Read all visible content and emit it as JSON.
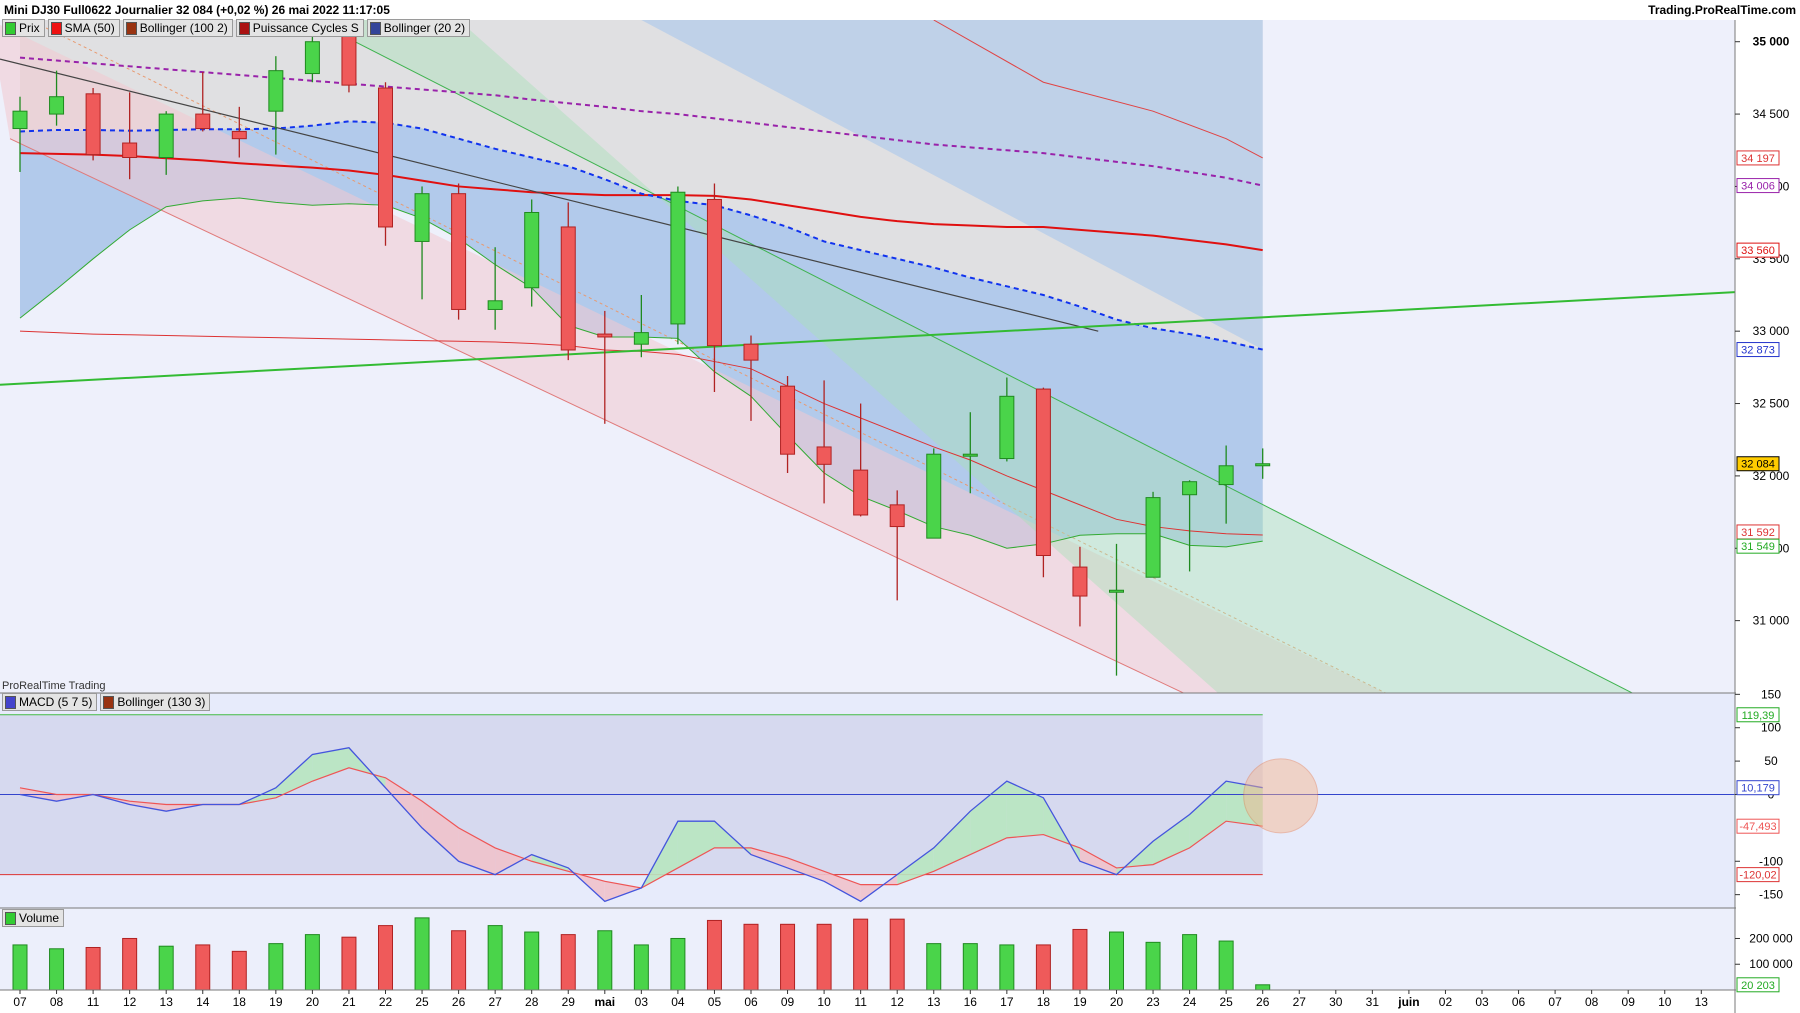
{
  "header": {
    "title": "Mini DJ30 Full0622 Journalier 32 084 (+0,02 %) 26 mai 2022 11:17:05",
    "brand": "Trading.ProRealTime.com"
  },
  "legends": {
    "price": [
      {
        "label": "Prix",
        "color": "#33cc33"
      },
      {
        "label": "SMA (50)",
        "color": "#ee1111"
      },
      {
        "label": "Bollinger (100 2)",
        "color": "#993311"
      },
      {
        "label": "Puissance Cycles S",
        "color": "#aa1111"
      },
      {
        "label": "Bollinger (20 2)",
        "color": "#334499"
      }
    ],
    "provider": "ProRealTime Trading",
    "macd": [
      {
        "label": "MACD (5 7 5)",
        "color": "#4444cc"
      },
      {
        "label": "Bollinger (130 3)",
        "color": "#993311"
      }
    ],
    "volume": [
      {
        "label": "Volume",
        "color": "#33cc33"
      }
    ]
  },
  "chart_data": [
    {
      "type": "candlestick",
      "x_labels": [
        "07",
        "08",
        "11",
        "12",
        "13",
        "14",
        "18",
        "19",
        "20",
        "21",
        "22",
        "25",
        "26",
        "27",
        "28",
        "29",
        "mai",
        "03",
        "04",
        "05",
        "06",
        "09",
        "10",
        "11",
        "12",
        "13",
        "16",
        "17",
        "18",
        "19",
        "20",
        "23",
        "24",
        "25",
        "26",
        "27",
        "30",
        "31",
        "juin",
        "02",
        "03",
        "06",
        "07",
        "08",
        "09",
        "10",
        "13"
      ],
      "ohlc": [
        {
          "o": 34400,
          "h": 34620,
          "l": 34100,
          "c": 34520
        },
        {
          "o": 34500,
          "h": 34800,
          "l": 34420,
          "c": 34620
        },
        {
          "o": 34640,
          "h": 34680,
          "l": 34180,
          "c": 34220
        },
        {
          "o": 34300,
          "h": 34650,
          "l": 34050,
          "c": 34200
        },
        {
          "o": 34200,
          "h": 34520,
          "l": 34080,
          "c": 34500
        },
        {
          "o": 34500,
          "h": 34790,
          "l": 34380,
          "c": 34400
        },
        {
          "o": 34380,
          "h": 34550,
          "l": 34200,
          "c": 34330
        },
        {
          "o": 34520,
          "h": 34900,
          "l": 34220,
          "c": 34800
        },
        {
          "o": 34780,
          "h": 35100,
          "l": 34720,
          "c": 35000
        },
        {
          "o": 35050,
          "h": 35080,
          "l": 34650,
          "c": 34700
        },
        {
          "o": 34680,
          "h": 34720,
          "l": 33590,
          "c": 33720
        },
        {
          "o": 33620,
          "h": 34000,
          "l": 33220,
          "c": 33950
        },
        {
          "o": 33950,
          "h": 34020,
          "l": 33080,
          "c": 33150
        },
        {
          "o": 33150,
          "h": 33580,
          "l": 33010,
          "c": 33210
        },
        {
          "o": 33300,
          "h": 33910,
          "l": 33170,
          "c": 33820
        },
        {
          "o": 33720,
          "h": 33890,
          "l": 32800,
          "c": 32870
        },
        {
          "o": 32980,
          "h": 33140,
          "l": 32360,
          "c": 32960
        },
        {
          "o": 32910,
          "h": 33250,
          "l": 32820,
          "c": 32990
        },
        {
          "o": 33050,
          "h": 34000,
          "l": 32910,
          "c": 33960
        },
        {
          "o": 33910,
          "h": 34020,
          "l": 32580,
          "c": 32900
        },
        {
          "o": 32910,
          "h": 32970,
          "l": 32380,
          "c": 32800
        },
        {
          "o": 32620,
          "h": 32690,
          "l": 32020,
          "c": 32150
        },
        {
          "o": 32200,
          "h": 32660,
          "l": 31810,
          "c": 32080
        },
        {
          "o": 32040,
          "h": 32500,
          "l": 31720,
          "c": 31730
        },
        {
          "o": 31800,
          "h": 31900,
          "l": 31140,
          "c": 31650
        },
        {
          "o": 31570,
          "h": 32190,
          "l": 31570,
          "c": 32150
        },
        {
          "o": 32150,
          "h": 32440,
          "l": 31880,
          "c": 32150
        },
        {
          "o": 32120,
          "h": 32680,
          "l": 32100,
          "c": 32550
        },
        {
          "o": 32600,
          "h": 32610,
          "l": 31300,
          "c": 31450
        },
        {
          "o": 31370,
          "h": 31510,
          "l": 30960,
          "c": 31170
        },
        {
          "o": 31210,
          "h": 31530,
          "l": 30620,
          "c": 31210
        },
        {
          "o": 31300,
          "h": 31890,
          "l": 31300,
          "c": 31850
        },
        {
          "o": 31870,
          "h": 31970,
          "l": 31340,
          "c": 31960
        },
        {
          "o": 31940,
          "h": 32210,
          "l": 31670,
          "c": 32070
        },
        {
          "o": 32070,
          "h": 32190,
          "l": 31980,
          "c": 32084
        }
      ],
      "sma50": [
        34230,
        34225,
        34220,
        34210,
        34195,
        34180,
        34160,
        34145,
        34130,
        34110,
        34080,
        34040,
        34000,
        33980,
        33960,
        33950,
        33940,
        33940,
        33940,
        33935,
        33910,
        33870,
        33830,
        33790,
        33760,
        33740,
        33730,
        33720,
        33720,
        33700,
        33680,
        33660,
        33630,
        33600,
        33560
      ],
      "bollinger100_upper": [
        34890,
        34870,
        34850,
        34830,
        34810,
        34790,
        34770,
        34750,
        34730,
        34710,
        34690,
        34670,
        34650,
        34630,
        34600,
        34575,
        34550,
        34520,
        34500,
        34470,
        34440,
        34410,
        34380,
        34350,
        34320,
        34290,
        34270,
        34250,
        34230,
        34200,
        34170,
        34140,
        34100,
        34060,
        34006
      ],
      "bollinger20_upper": [
        34380,
        34390,
        34390,
        34385,
        34390,
        34395,
        34395,
        34400,
        34420,
        34450,
        34440,
        34400,
        34330,
        34260,
        34200,
        34140,
        34050,
        33950,
        33900,
        33870,
        33800,
        33720,
        33620,
        33560,
        33500,
        33440,
        33370,
        33310,
        33250,
        33170,
        33080,
        33020,
        32980,
        32930,
        32873
      ],
      "bollinger20_lower": [
        33090,
        33290,
        33500,
        33700,
        33860,
        33900,
        33920,
        33890,
        33870,
        33880,
        33870,
        33780,
        33640,
        33460,
        33300,
        33040,
        32960,
        32960,
        32950,
        32720,
        32550,
        32280,
        32020,
        31860,
        31760,
        31650,
        31590,
        31500,
        31530,
        31590,
        31600,
        31600,
        31520,
        31510,
        31549
      ],
      "cycle_power": [
        33000,
        32990,
        32980,
        32975,
        32970,
        32965,
        32960,
        32955,
        32950,
        32945,
        32940,
        32935,
        32930,
        32925,
        32915,
        32900,
        32870,
        32860,
        32840,
        32790,
        32740,
        32620,
        32500,
        32400,
        32300,
        32200,
        32110,
        32000,
        31900,
        31800,
        31700,
        31650,
        31620,
        31600,
        31592
      ],
      "channel_line": {
        "x0": 0,
        "y0": 32630,
        "x1": 47,
        "y1": 33270
      },
      "trend_line": {
        "x0": 0,
        "y0": 34880,
        "x1": 29.5,
        "y1": 33000
      },
      "last_prices": {
        "sma50": "33 560",
        "boll100": "34 006",
        "boll_upper": "34 197",
        "boll20_upper": "32 873",
        "cycle": "31 592",
        "boll20_lower": "31 549",
        "last": "32 084"
      },
      "y_ticks": [
        "35 000",
        "34 500",
        "34 000",
        "33 500",
        "33 000",
        "32 500",
        "32 000",
        "31 500",
        "31 000"
      ],
      "y_tick_values": [
        35000,
        34500,
        34000,
        33500,
        33000,
        32500,
        32000,
        31500,
        31000
      ],
      "ylim": [
        30500,
        35150
      ]
    },
    {
      "type": "line",
      "name": "MACD (5 7 5)",
      "macd": [
        0,
        -10,
        0,
        -15,
        -25,
        -15,
        -15,
        10,
        60,
        70,
        10,
        -50,
        -100,
        -120,
        -90,
        -110,
        -160,
        -140,
        -40,
        -40,
        -90,
        -110,
        -130,
        -160,
        -120,
        -80,
        -25,
        20,
        -5,
        -100,
        -120,
        -70,
        -30,
        20,
        10.179
      ],
      "signal": [
        10,
        0,
        0,
        -10,
        -15,
        -15,
        -15,
        -5,
        20,
        40,
        25,
        -10,
        -50,
        -80,
        -100,
        -115,
        -130,
        -140,
        -110,
        -80,
        -80,
        -95,
        -115,
        -135,
        -135,
        -115,
        -90,
        -65,
        -60,
        -80,
        -110,
        -105,
        -80,
        -40,
        -47.493
      ],
      "upper_band": [
        119.39
      ],
      "lower_band": [
        -120.02
      ],
      "y_ticks": [
        "150",
        "100",
        "50",
        "0",
        "-100",
        "-150"
      ],
      "y_tick_values": [
        150,
        100,
        50,
        0,
        -100,
        -150
      ],
      "last_values": {
        "upper": "119,39",
        "macd": "10,179",
        "signal": "-47,493",
        "lower": "-120,02"
      },
      "ylim": [
        -170,
        152
      ]
    },
    {
      "type": "bar",
      "name": "Volume",
      "values": [
        175000,
        160000,
        165000,
        200000,
        170000,
        175000,
        150000,
        180000,
        215000,
        205000,
        250000,
        280000,
        230000,
        250000,
        225000,
        215000,
        230000,
        175000,
        200000,
        270000,
        255000,
        255000,
        255000,
        275000,
        275000,
        180000,
        180000,
        175000,
        175000,
        235000,
        225000,
        185000,
        215000,
        190000,
        20203
      ],
      "up": [
        true,
        true,
        false,
        false,
        true,
        false,
        false,
        true,
        true,
        false,
        false,
        true,
        false,
        true,
        true,
        false,
        true,
        true,
        true,
        false,
        false,
        false,
        false,
        false,
        false,
        true,
        true,
        true,
        false,
        false,
        true,
        true,
        true,
        true,
        true
      ],
      "y_ticks": [
        "200 000",
        "100 000"
      ],
      "y_tick_values": [
        200000,
        100000
      ],
      "last_value": "20 203",
      "ylim": [
        0,
        295000
      ]
    }
  ]
}
